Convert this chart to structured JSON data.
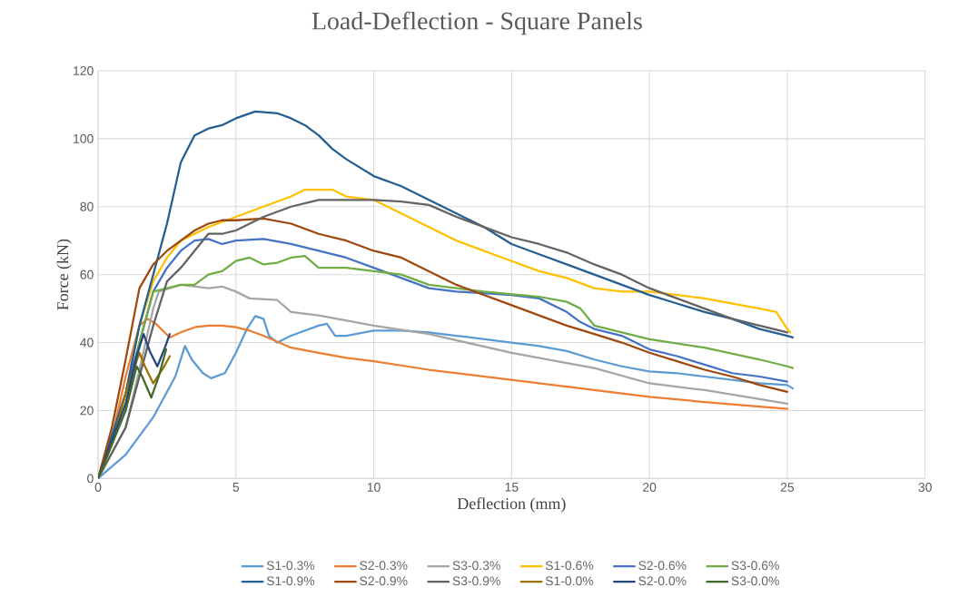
{
  "chart_data": {
    "type": "line",
    "title": "Load-Deflection - Square Panels",
    "xlabel": "Deflection (mm)",
    "ylabel": "Force (kN)",
    "xlim": [
      0,
      30
    ],
    "ylim": [
      0,
      120
    ],
    "xticks": [
      0,
      5,
      10,
      15,
      20,
      25,
      30
    ],
    "yticks": [
      0,
      20,
      40,
      60,
      80,
      100,
      120
    ],
    "grid": true,
    "legend": "bottom",
    "marker": "none",
    "line_style": "solid",
    "series": [
      {
        "name": "S1-0.3%",
        "color": "#5b9bd5",
        "x": [
          0,
          1,
          2,
          2.8,
          3.15,
          3.4,
          3.8,
          4.1,
          4.6,
          5,
          5.4,
          5.7,
          6,
          6.2,
          6.5,
          7,
          8,
          8.3,
          8.6,
          9,
          10,
          11,
          12,
          13,
          14,
          15,
          16,
          17,
          18,
          19,
          20,
          21,
          22,
          23,
          24,
          25,
          25.2
        ],
        "values": [
          0,
          7,
          18,
          30,
          39,
          35,
          31,
          29.5,
          31,
          37,
          44,
          47.8,
          47,
          42,
          40,
          42,
          45,
          45.5,
          42,
          42,
          43.5,
          43.5,
          43,
          42,
          41,
          40,
          39,
          37.5,
          35,
          33,
          31.5,
          31,
          30,
          29,
          28,
          27.5,
          26.5
        ]
      },
      {
        "name": "S2-0.3%",
        "color": "#ed7d31",
        "x": [
          0,
          0.5,
          1,
          1.5,
          1.8,
          2.1,
          2.6,
          3,
          3.5,
          4,
          4.5,
          5,
          5.5,
          6,
          7,
          8,
          9,
          10,
          12,
          15,
          18,
          20,
          22,
          25
        ],
        "values": [
          0,
          12,
          30,
          45,
          47,
          45.5,
          41.5,
          43,
          44.5,
          45,
          45,
          44.5,
          43.5,
          42,
          38.5,
          37,
          35.5,
          34.5,
          32,
          29,
          26,
          24,
          22.5,
          20.5
        ]
      },
      {
        "name": "S3-0.3%",
        "color": "#a5a5a5",
        "x": [
          0,
          1,
          1.5,
          2,
          2.2,
          3,
          4,
          4.5,
          5,
          5.5,
          6.5,
          7,
          8,
          10,
          12,
          15,
          17,
          18,
          20,
          22,
          25
        ],
        "values": [
          0,
          15,
          32,
          50,
          55,
          57,
          56,
          56.5,
          55,
          53,
          52.5,
          49,
          48,
          45,
          42.5,
          37,
          34,
          32.5,
          28,
          26,
          22
        ]
      },
      {
        "name": "S1-0.6%",
        "color": "#ffc000",
        "x": [
          0,
          1,
          1.5,
          2,
          2.5,
          3,
          4,
          5,
          6,
          7,
          7.5,
          8.5,
          9,
          10,
          11,
          12,
          13,
          14,
          15,
          16,
          17,
          18,
          19,
          20,
          22,
          24,
          24.6,
          25,
          25.1
        ],
        "values": [
          0,
          25,
          45,
          58,
          65,
          70,
          74,
          77,
          80,
          83,
          85,
          85,
          83,
          82,
          78,
          74,
          70,
          67,
          64,
          61,
          59,
          56,
          55,
          55,
          53,
          50,
          49,
          44,
          43
        ]
      },
      {
        "name": "S2-0.6%",
        "color": "#4472c4",
        "x": [
          0,
          1,
          2,
          2.5,
          3,
          3.5,
          4,
          4.5,
          5,
          6,
          7,
          8,
          9,
          10,
          11,
          12,
          13,
          15,
          16,
          17,
          17.5,
          18,
          19,
          20,
          21,
          22,
          23,
          24,
          25
        ],
        "values": [
          0,
          25,
          55,
          62,
          67,
          70,
          70.5,
          69,
          70,
          70.5,
          69,
          67,
          65,
          62,
          59,
          56,
          55,
          54,
          53,
          49,
          46,
          44,
          42,
          38,
          36,
          33.5,
          31,
          30,
          28.5
        ]
      },
      {
        "name": "S3-0.6%",
        "color": "#70ad47",
        "x": [
          0,
          1,
          1.5,
          2,
          2.5,
          3,
          3.5,
          4,
          4.5,
          5,
          5.5,
          6,
          6.5,
          7,
          7.5,
          8,
          9,
          10,
          11,
          12,
          13,
          14,
          16,
          17,
          17.5,
          18,
          19,
          20,
          22,
          24,
          25,
          25.2
        ],
        "values": [
          0,
          20,
          40,
          55,
          56,
          57,
          57,
          60,
          61,
          64,
          65,
          63,
          63.5,
          65,
          65.5,
          62,
          62,
          61,
          60,
          57,
          56,
          55,
          53.5,
          52,
          50,
          45,
          43,
          41,
          38.5,
          35,
          33,
          32.5
        ]
      },
      {
        "name": "S1-0.9%",
        "color": "#255e91",
        "x": [
          0,
          1,
          1.5,
          2,
          2.5,
          3,
          3.5,
          4,
          4.5,
          5,
          5.7,
          6.5,
          7,
          7.5,
          8,
          8.5,
          9,
          10,
          11,
          12,
          13,
          14,
          15,
          16,
          17,
          18,
          19,
          20,
          21,
          22,
          23,
          24,
          25,
          25.2
        ],
        "values": [
          0,
          25,
          45,
          60,
          75,
          93,
          101,
          103,
          104,
          106,
          108,
          107.5,
          106,
          104,
          101,
          97,
          94,
          89,
          86,
          82,
          78,
          74,
          69,
          66,
          63,
          60,
          57,
          54,
          51.5,
          49,
          47,
          44,
          42,
          41.5
        ]
      },
      {
        "name": "S2-0.9%",
        "color": "#9e480e",
        "x": [
          0,
          0.5,
          1,
          1.5,
          2,
          2.5,
          3,
          3.5,
          4,
          4.5,
          5,
          6,
          7,
          8,
          9,
          10,
          11,
          12,
          13,
          14,
          15,
          16,
          17,
          18,
          19,
          20,
          21,
          22,
          23,
          24,
          25
        ],
        "values": [
          0,
          15,
          35,
          56,
          63,
          67,
          70,
          73,
          75,
          76,
          76,
          76.5,
          75,
          72,
          70,
          67,
          65,
          61,
          57,
          54,
          51,
          48,
          45,
          42.5,
          40,
          37,
          34.5,
          32,
          30,
          27.5,
          25.5
        ]
      },
      {
        "name": "S3-0.9%",
        "color": "#636363",
        "x": [
          0,
          1,
          1.5,
          2,
          2.5,
          3,
          3.5,
          4,
          4.5,
          5,
          6,
          7,
          8,
          10,
          11,
          12,
          13,
          14,
          15,
          16,
          17,
          18,
          19,
          20,
          21,
          22,
          23,
          24,
          25
        ],
        "values": [
          0,
          15,
          30,
          45,
          58,
          62,
          67,
          72,
          72,
          73,
          77,
          80,
          82,
          82,
          81.5,
          80.5,
          77,
          74,
          71,
          69,
          66.5,
          63,
          60,
          56,
          53,
          50,
          47,
          45,
          43
        ]
      },
      {
        "name": "S1-0.0%",
        "color": "#997300",
        "x": [
          0,
          0.5,
          1,
          1.5,
          1.7,
          2,
          2.4,
          2.6
        ],
        "values": [
          0,
          10,
          25,
          37,
          33,
          28,
          33,
          36
        ]
      },
      {
        "name": "S2-0.0%",
        "color": "#264478",
        "x": [
          0,
          1,
          1.4,
          1.65,
          1.9,
          2.15,
          2.4,
          2.6
        ],
        "values": [
          0,
          22,
          36,
          42.5,
          37,
          33,
          38,
          42.5
        ]
      },
      {
        "name": "S3-0.0%",
        "color": "#43682b",
        "x": [
          0,
          1,
          1.4,
          1.6,
          1.93,
          2.2,
          2.47
        ],
        "values": [
          0,
          20,
          33,
          30,
          23.8,
          30,
          38
        ]
      }
    ]
  }
}
